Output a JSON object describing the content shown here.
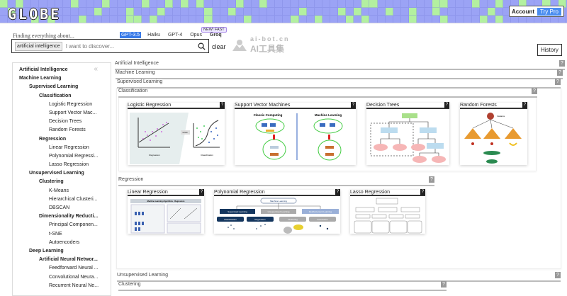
{
  "header": {
    "logo": "GLOBE",
    "account": "Account",
    "try_pro": "Try Pro"
  },
  "search": {
    "prompt": "Finding everything about...",
    "models": [
      "GPT-3.5",
      "Haiku",
      "GPT-4",
      "Opus",
      "Groq"
    ],
    "selected_model": "GPT-3.5",
    "badge": "NEW! FAST",
    "chip": "artificial intelligence",
    "placeholder": "I want to discover...",
    "clear": "clear",
    "history": "History"
  },
  "watermark": {
    "line1": "ai-bot.cn",
    "line2": "AI工具集"
  },
  "sidebar": {
    "items": [
      {
        "label": "Artificial Intelligence",
        "level": 0,
        "bold": true
      },
      {
        "label": "Machine Learning",
        "level": 0,
        "bold": true
      },
      {
        "label": "Supervised Learning",
        "level": 1,
        "bold": true
      },
      {
        "label": "Classification",
        "level": 2,
        "bold": true
      },
      {
        "label": "Logistic Regression",
        "level": 3
      },
      {
        "label": "Support Vector Mac...",
        "level": 3
      },
      {
        "label": "Decision Trees",
        "level": 3
      },
      {
        "label": "Random Forests",
        "level": 3
      },
      {
        "label": "Regression",
        "level": 2,
        "bold": true
      },
      {
        "label": "Linear Regression",
        "level": 3
      },
      {
        "label": "Polynomial Regressi...",
        "level": 3
      },
      {
        "label": "Lasso Regression",
        "level": 3
      },
      {
        "label": "Unsupervised Learning",
        "level": 1,
        "bold": true
      },
      {
        "label": "Clustering",
        "level": 2,
        "bold": true
      },
      {
        "label": "K-Means",
        "level": 3
      },
      {
        "label": "Hierarchical Clusteri...",
        "level": 3
      },
      {
        "label": "DBSCAN",
        "level": 3
      },
      {
        "label": "Dimensionality Reducti...",
        "level": 2,
        "bold": true
      },
      {
        "label": "Principal Componen...",
        "level": 3
      },
      {
        "label": "t-SNE",
        "level": 3
      },
      {
        "label": "Autoencoders",
        "level": 3
      },
      {
        "label": "Deep Learning",
        "level": 1,
        "bold": true
      },
      {
        "label": "Artificial Neural Networ...",
        "level": 2,
        "bold": true
      },
      {
        "label": "Feedforward Neural ...",
        "level": 3
      },
      {
        "label": "Convolutional Neura...",
        "level": 3
      },
      {
        "label": "Recurrent Neural Ne...",
        "level": 3
      }
    ]
  },
  "main": {
    "sections": {
      "ai": "Artificial Intelligence",
      "ml": "Machine Learning",
      "sl": "Supervised Learning",
      "cls": "Classification",
      "reg": "Regression",
      "ul": "Unsupervised Learning",
      "clu": "Clustering"
    },
    "help": "?",
    "classification_cards": [
      "Logistic Regression",
      "Support Vector Machines",
      "Decision Trees",
      "Random Forests"
    ],
    "regression_cards": [
      "Linear Regression",
      "Polynomial Regression",
      "Lasso Regression"
    ],
    "image_text": {
      "lr_left": "Regression",
      "lr_right": "Classification",
      "lr_mid": "versus",
      "svm_left": "Classic Computing",
      "svm_right": "Machine Learning",
      "poly_root": "Machine Learning",
      "poly_nodes": [
        "Supervised Learning",
        "Unsupervised Learning",
        "Reinforcement Learning",
        "Classification",
        "Regression",
        "Clustering",
        "Association"
      ],
      "lin_title": "Machine Learning Algorithms - Regression",
      "rf_top": "Instance"
    }
  }
}
